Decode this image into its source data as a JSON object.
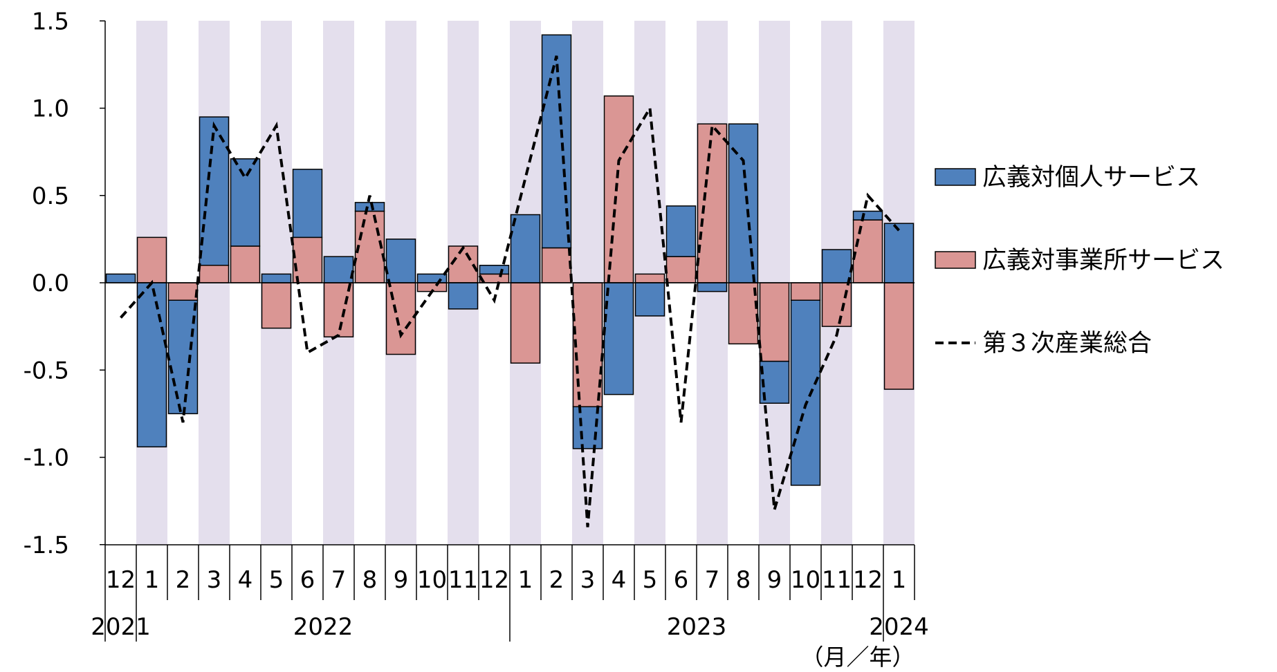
{
  "chart_data": {
    "type": "bar",
    "stacked": true,
    "categories": [
      "12",
      "1",
      "2",
      "3",
      "4",
      "5",
      "6",
      "7",
      "8",
      "9",
      "10",
      "11",
      "12",
      "1",
      "2",
      "3",
      "4",
      "5",
      "6",
      "7",
      "8",
      "9",
      "10",
      "11",
      "12",
      "1"
    ],
    "years": [
      "2021",
      "2022",
      "2023",
      "2024"
    ],
    "unit_label": "（月／年）",
    "ylim": [
      -1.5,
      1.5
    ],
    "yticks": [
      "1.5",
      "1.0",
      "0.5",
      "0.0",
      "-0.5",
      "-1.0",
      "-1.5"
    ],
    "legend_position": "right",
    "series": [
      {
        "name": "広義対個人サービス",
        "type": "bar",
        "color": "#4f81bd",
        "values": [
          0.05,
          -0.94,
          -0.65,
          0.85,
          0.5,
          0.05,
          0.39,
          0.15,
          0.05,
          0.25,
          0.05,
          -0.15,
          0.05,
          0.39,
          1.22,
          -0.24,
          -0.64,
          -0.19,
          0.29,
          -0.05,
          0.91,
          -0.24,
          -1.06,
          0.19,
          0.05,
          0.34
        ]
      },
      {
        "name": "広義対事業所サービス",
        "type": "bar",
        "color": "#da9694",
        "values": [
          0.0,
          0.26,
          -0.1,
          0.1,
          0.21,
          -0.26,
          0.26,
          -0.31,
          0.41,
          -0.41,
          -0.05,
          0.21,
          0.05,
          -0.46,
          0.2,
          -0.71,
          1.07,
          0.05,
          0.15,
          0.91,
          -0.35,
          -0.45,
          -0.1,
          -0.25,
          0.36,
          -0.61
        ]
      },
      {
        "name": "第３次産業総合",
        "type": "line",
        "color": "#000000",
        "style": "dashed",
        "values": [
          -0.2,
          0.0,
          -0.8,
          0.9,
          0.6,
          0.9,
          -0.4,
          -0.3,
          0.5,
          -0.3,
          -0.05,
          0.2,
          -0.1,
          0.6,
          1.3,
          -1.4,
          0.7,
          1.0,
          -0.8,
          0.9,
          0.7,
          -1.3,
          -0.7,
          -0.3,
          0.5,
          0.3
        ]
      }
    ]
  }
}
